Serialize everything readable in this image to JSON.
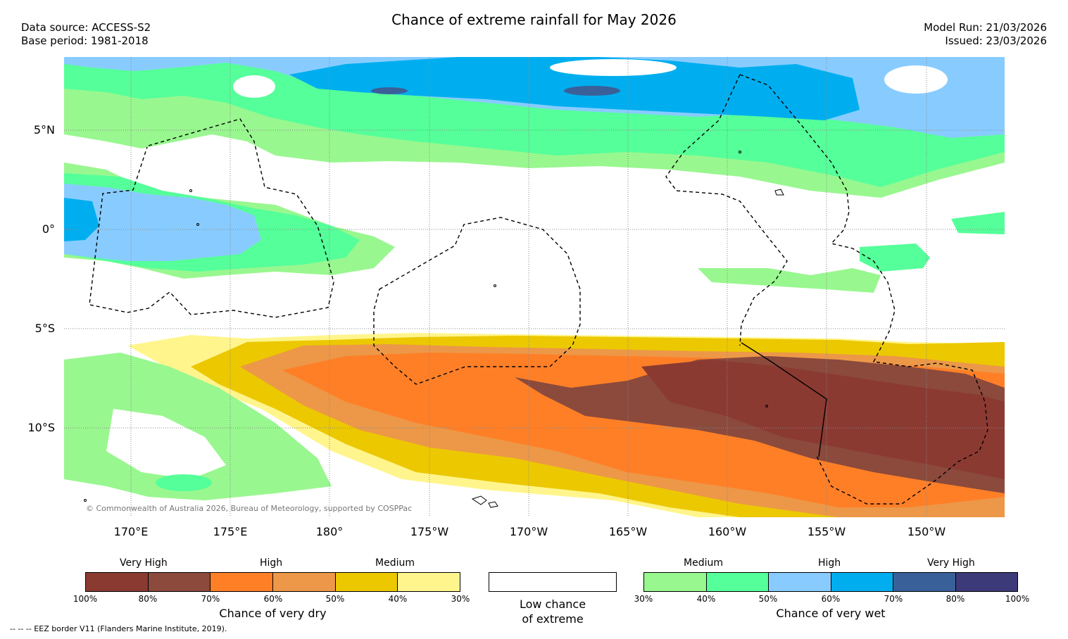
{
  "header": {
    "title": "Chance of extreme rainfall for May 2026",
    "data_source": "Data source: ACCESS-S2",
    "base_period": "Base period: 1981-2018",
    "model_run": "Model Run: 21/03/2026",
    "issued": "Issued: 23/03/2026"
  },
  "map": {
    "latitude_labels": [
      "5°N",
      "0°",
      "5°S",
      "10°S"
    ],
    "longitude_labels": [
      "170°E",
      "175°E",
      "180°",
      "175°W",
      "170°W",
      "165°W",
      "160°W",
      "155°W",
      "150°W"
    ],
    "copyright": "© Commonwealth of Australia 2026, Bureau of Meteorology, supported by COSPPac",
    "colors": {
      "dry_very_high_100": "#8B3A32",
      "dry_very_high_80": "#8B4A3C",
      "dry_high_70": "#FF7F27",
      "dry_high_60": "#EC9848",
      "dry_medium_50": "#ECC800",
      "dry_medium_40": "#FFF58C",
      "wet_medium_30": "#99F78F",
      "wet_medium_40": "#55FF99",
      "wet_high_50": "#88CCFF",
      "wet_high_60": "#00AEEF",
      "wet_very_high_70": "#3A6099",
      "wet_very_high_80": "#3C3A78"
    }
  },
  "legend": {
    "dry": {
      "headers": [
        "Very High",
        "High",
        "Medium"
      ],
      "ticks": [
        "100%",
        "80%",
        "70%",
        "60%",
        "50%",
        "40%",
        "30%"
      ],
      "title": "Chance of very dry",
      "colors": [
        "#8B3A32",
        "#8B4A3C",
        "#FF7F27",
        "#EC9848",
        "#ECC800",
        "#FFF58C"
      ]
    },
    "neutral": {
      "line1": "Low chance",
      "line2": "of extreme",
      "color": "#FFFFFF"
    },
    "wet": {
      "headers": [
        "Medium",
        "High",
        "Very High"
      ],
      "ticks": [
        "30%",
        "40%",
        "50%",
        "60%",
        "70%",
        "80%",
        "100%"
      ],
      "title": "Chance of very wet",
      "colors": [
        "#99F78F",
        "#55FF99",
        "#88CCFF",
        "#00AEEF",
        "#3A6099",
        "#3C3A78"
      ]
    }
  },
  "footnote": "--  --  -- EEZ border V11 (Flanders Marine Institute, 2019)."
}
